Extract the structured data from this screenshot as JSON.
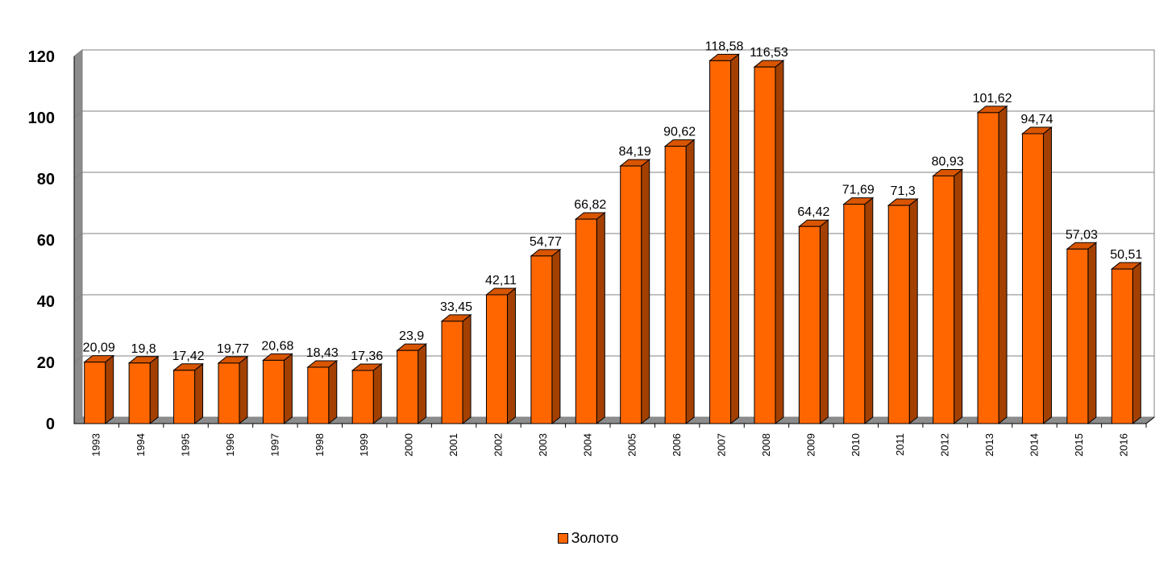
{
  "chart_data": {
    "type": "bar",
    "categories": [
      "1993",
      "1994",
      "1995",
      "1996",
      "1997",
      "1998",
      "1999",
      "2000",
      "2001",
      "2002",
      "2003",
      "2004",
      "2005",
      "2006",
      "2007",
      "2008",
      "2009",
      "2010",
      "2011",
      "2012",
      "2013",
      "2014",
      "2015",
      "2016"
    ],
    "series": [
      {
        "name": "Золото",
        "values": [
          20.09,
          19.8,
          17.42,
          19.77,
          20.68,
          18.43,
          17.36,
          23.9,
          33.45,
          42.11,
          54.77,
          66.82,
          84.19,
          90.62,
          118.58,
          116.53,
          64.42,
          71.69,
          71.3,
          80.93,
          101.62,
          94.74,
          57.03,
          50.51
        ],
        "labels": [
          "20,09",
          "19,8",
          "17,42",
          "19,77",
          "20,68",
          "18,43",
          "17,36",
          "23,9",
          "33,45",
          "42,11",
          "54,77",
          "66,82",
          "84,19",
          "90,62",
          "118,58",
          "116,53",
          "64,42",
          "71,69",
          "71,3",
          "80,93",
          "101,62",
          "94,74",
          "57,03",
          "50,51"
        ],
        "color": "#ff6600",
        "side_color": "#a34000",
        "top_color": "#d95500"
      }
    ],
    "yticks": [
      "0",
      "20",
      "40",
      "60",
      "80",
      "100",
      "120"
    ],
    "ylim": [
      0,
      120
    ],
    "grid": true,
    "legend_position": "bottom",
    "title": "",
    "xlabel": "",
    "ylabel": ""
  },
  "legend": {
    "label": "Золото"
  }
}
